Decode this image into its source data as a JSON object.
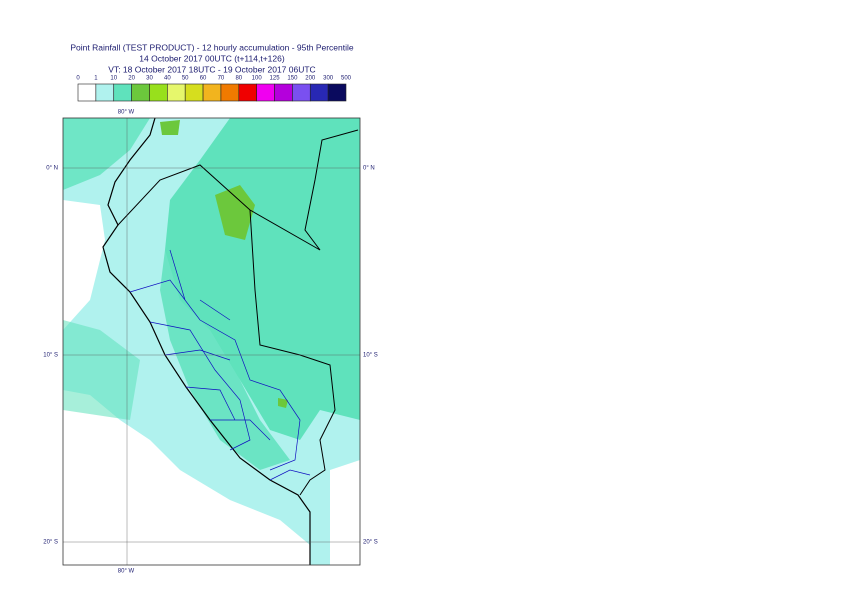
{
  "header": {
    "title": "Point Rainfall (TEST PRODUCT) - 12 hourly accumulation - 95th Percentile",
    "line2": "14 October 2017 00UTC (t+114,t+126)",
    "line3": "VT: 18 October 2017 18UTC - 19 October 2017 06UTC"
  },
  "legend": {
    "labels": [
      "0",
      "1",
      "10",
      "20",
      "30",
      "40",
      "50",
      "60",
      "70",
      "80",
      "100",
      "125",
      "150",
      "200",
      "300",
      "500"
    ],
    "colors": [
      "#ffffff",
      "#b0f2ee",
      "#5fe2bc",
      "#6cc83c",
      "#98e01c",
      "#e6f76c",
      "#d6de1e",
      "#f2b41e",
      "#f07a00",
      "#f00000",
      "#f000f0",
      "#b400dc",
      "#7a50f0",
      "#2828b4",
      "#0a0a5e"
    ]
  },
  "map": {
    "lon_labels": [
      "80° W"
    ],
    "lat_labels": [
      "0° N",
      "10° S",
      "20° S"
    ]
  }
}
